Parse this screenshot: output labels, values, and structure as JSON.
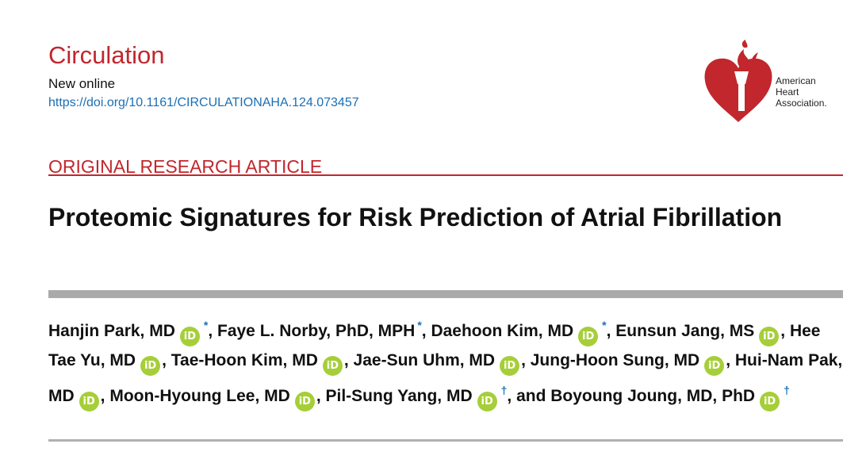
{
  "journal": {
    "name": "Circulation",
    "status": "New online",
    "doi": "https://doi.org/10.1161/CIRCULATIONAHA.124.073457"
  },
  "logo": {
    "line1": "American",
    "line2": "Heart",
    "line3": "Association.",
    "icon": "heart-torch-icon",
    "color": "#c1272d"
  },
  "article": {
    "section": "ORIGINAL RESEARCH ARTICLE",
    "title": "Proteomic Signatures for Risk Prediction of Atrial Fibrillation"
  },
  "orcid_label": "iD",
  "authors": [
    {
      "name": "Hanjin Park, MD",
      "orcid": true,
      "mark": "*",
      "sep": ", "
    },
    {
      "name": "Faye L. Norby, PhD, MPH",
      "orcid": false,
      "mark": "*",
      "sep": ", "
    },
    {
      "name": "Daehoon Kim, MD",
      "orcid": true,
      "mark": "*",
      "sep": ", "
    },
    {
      "name": "Eunsun Jang, MS",
      "orcid": true,
      "mark": "",
      "sep": ", "
    },
    {
      "name": "Hee Tae Yu, MD",
      "orcid": true,
      "mark": "",
      "sep": ", "
    },
    {
      "name": "Tae-Hoon Kim, MD",
      "orcid": true,
      "mark": "",
      "sep": ", "
    },
    {
      "name": "Jae-Sun Uhm, MD",
      "orcid": true,
      "mark": "",
      "sep": ", "
    },
    {
      "name": "Jung-Hoon Sung, MD",
      "orcid": true,
      "mark": "",
      "sep": ", "
    },
    {
      "name": "Hui-Nam Pak, MD",
      "orcid": true,
      "mark": "",
      "sep": ", "
    },
    {
      "name": "Moon-Hyoung Lee, MD",
      "orcid": true,
      "mark": "",
      "sep": ", "
    },
    {
      "name": "Pil-Sung Yang, MD",
      "orcid": true,
      "mark": "†",
      "sep": ", "
    },
    {
      "name": "and Boyoung Joung, MD, PhD",
      "orcid": true,
      "mark": "†",
      "sep": ""
    }
  ]
}
